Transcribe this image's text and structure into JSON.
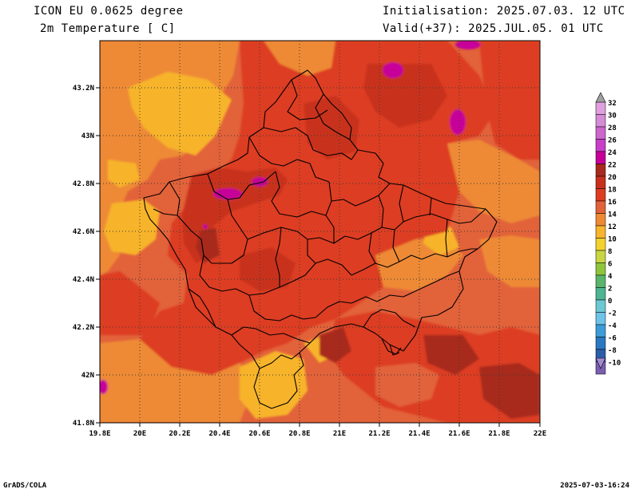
{
  "header": {
    "model": "ICON EU 0.0625 degree",
    "variable": "2m Temperature [ C]",
    "initialisation": "Initialisation: 2025.07.03. 12 UTC",
    "valid": "Valid(+37): 2025.JUL.05. 01 UTC"
  },
  "map": {
    "lon_range": [
      19.8,
      22.0
    ],
    "lat_range": [
      41.8,
      43.4
    ],
    "lon_ticks": [
      "19.8E",
      "20E",
      "20.2E",
      "20.4E",
      "20.6E",
      "20.8E",
      "21E",
      "21.2E",
      "21.4E",
      "21.6E",
      "21.8E",
      "22E"
    ],
    "lat_ticks": [
      "41.8N",
      "42N",
      "42.2N",
      "42.4N",
      "42.6N",
      "42.8N",
      "43N",
      "43.2N"
    ],
    "grid": "dotted"
  },
  "colorbar": {
    "levels": [
      {
        "label": "32",
        "color": "#e0a0e0"
      },
      {
        "label": "30",
        "color": "#d58bd5"
      },
      {
        "label": "28",
        "color": "#cc66cc"
      },
      {
        "label": "26",
        "color": "#c83ec8"
      },
      {
        "label": "24",
        "color": "#c7009a"
      },
      {
        "label": "22",
        "color": "#a82a1e"
      },
      {
        "label": "20",
        "color": "#c8301e"
      },
      {
        "label": "18",
        "color": "#dd3c23"
      },
      {
        "label": "16",
        "color": "#e2623a"
      },
      {
        "label": "14",
        "color": "#ee8a34"
      },
      {
        "label": "12",
        "color": "#f7b42c"
      },
      {
        "label": "10",
        "color": "#f2d22d"
      },
      {
        "label": "8",
        "color": "#c9d642"
      },
      {
        "label": "6",
        "color": "#8ec53a"
      },
      {
        "label": "4",
        "color": "#5ab46a"
      },
      {
        "label": "2",
        "color": "#4eb491"
      },
      {
        "label": "0",
        "color": "#6cc8d2"
      },
      {
        "label": "-2",
        "color": "#6fc3e8"
      },
      {
        "label": "-4",
        "color": "#3d9bd8"
      },
      {
        "label": "-6",
        "color": "#2a78c0"
      },
      {
        "label": "-8",
        "color": "#2b5ea8"
      },
      {
        "label": "-10",
        "color": "#7a5fb0"
      }
    ],
    "top_arrow_color": "#a0a0a0",
    "bottom_arrow_color": "#a48ad0"
  },
  "footer": {
    "left": "GrADS/COLA",
    "right": "2025-07-03-16:24"
  }
}
